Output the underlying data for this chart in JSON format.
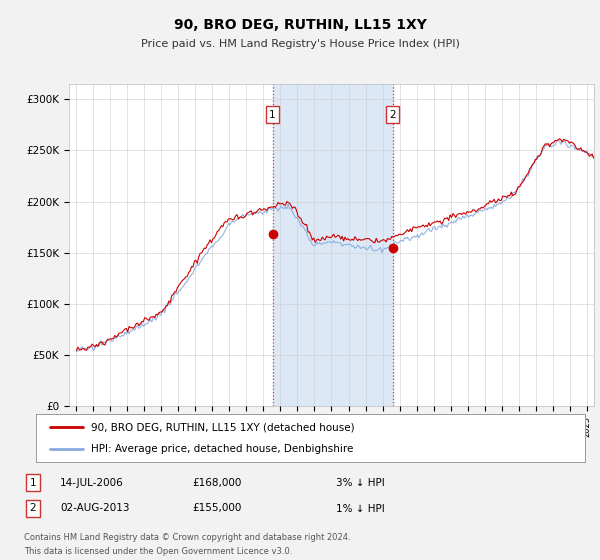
{
  "title": "90, BRO DEG, RUTHIN, LL15 1XY",
  "subtitle": "Price paid vs. HM Land Registry's House Price Index (HPI)",
  "ylabel_ticks": [
    "£0",
    "£50K",
    "£100K",
    "£150K",
    "£200K",
    "£250K",
    "£300K"
  ],
  "ytick_values": [
    0,
    50000,
    100000,
    150000,
    200000,
    250000,
    300000
  ],
  "ylim": [
    0,
    315000
  ],
  "xlim_start": 1994.6,
  "xlim_end": 2025.4,
  "background_color": "#f2f2f2",
  "plot_bg_color": "#ffffff",
  "red_line_color": "#cc0000",
  "blue_line_color": "#88aadd",
  "highlight_shade": "#dce8f5",
  "marker1_x": 2006.54,
  "marker1_y": 168000,
  "marker2_x": 2013.58,
  "marker2_y": 155000,
  "legend_label1": "90, BRO DEG, RUTHIN, LL15 1XY (detached house)",
  "legend_label2": "HPI: Average price, detached house, Denbighshire",
  "note1_date": "14-JUL-2006",
  "note1_price": "£168,000",
  "note1_hpi": "3% ↓ HPI",
  "note2_date": "02-AUG-2013",
  "note2_price": "£155,000",
  "note2_hpi": "1% ↓ HPI",
  "footer": "Contains HM Land Registry data © Crown copyright and database right 2024.\nThis data is licensed under the Open Government Licence v3.0.",
  "xtick_years": [
    1995,
    1996,
    1997,
    1998,
    1999,
    2000,
    2001,
    2002,
    2003,
    2004,
    2005,
    2006,
    2007,
    2008,
    2009,
    2010,
    2011,
    2012,
    2013,
    2014,
    2015,
    2016,
    2017,
    2018,
    2019,
    2020,
    2021,
    2022,
    2023,
    2024,
    2025
  ]
}
